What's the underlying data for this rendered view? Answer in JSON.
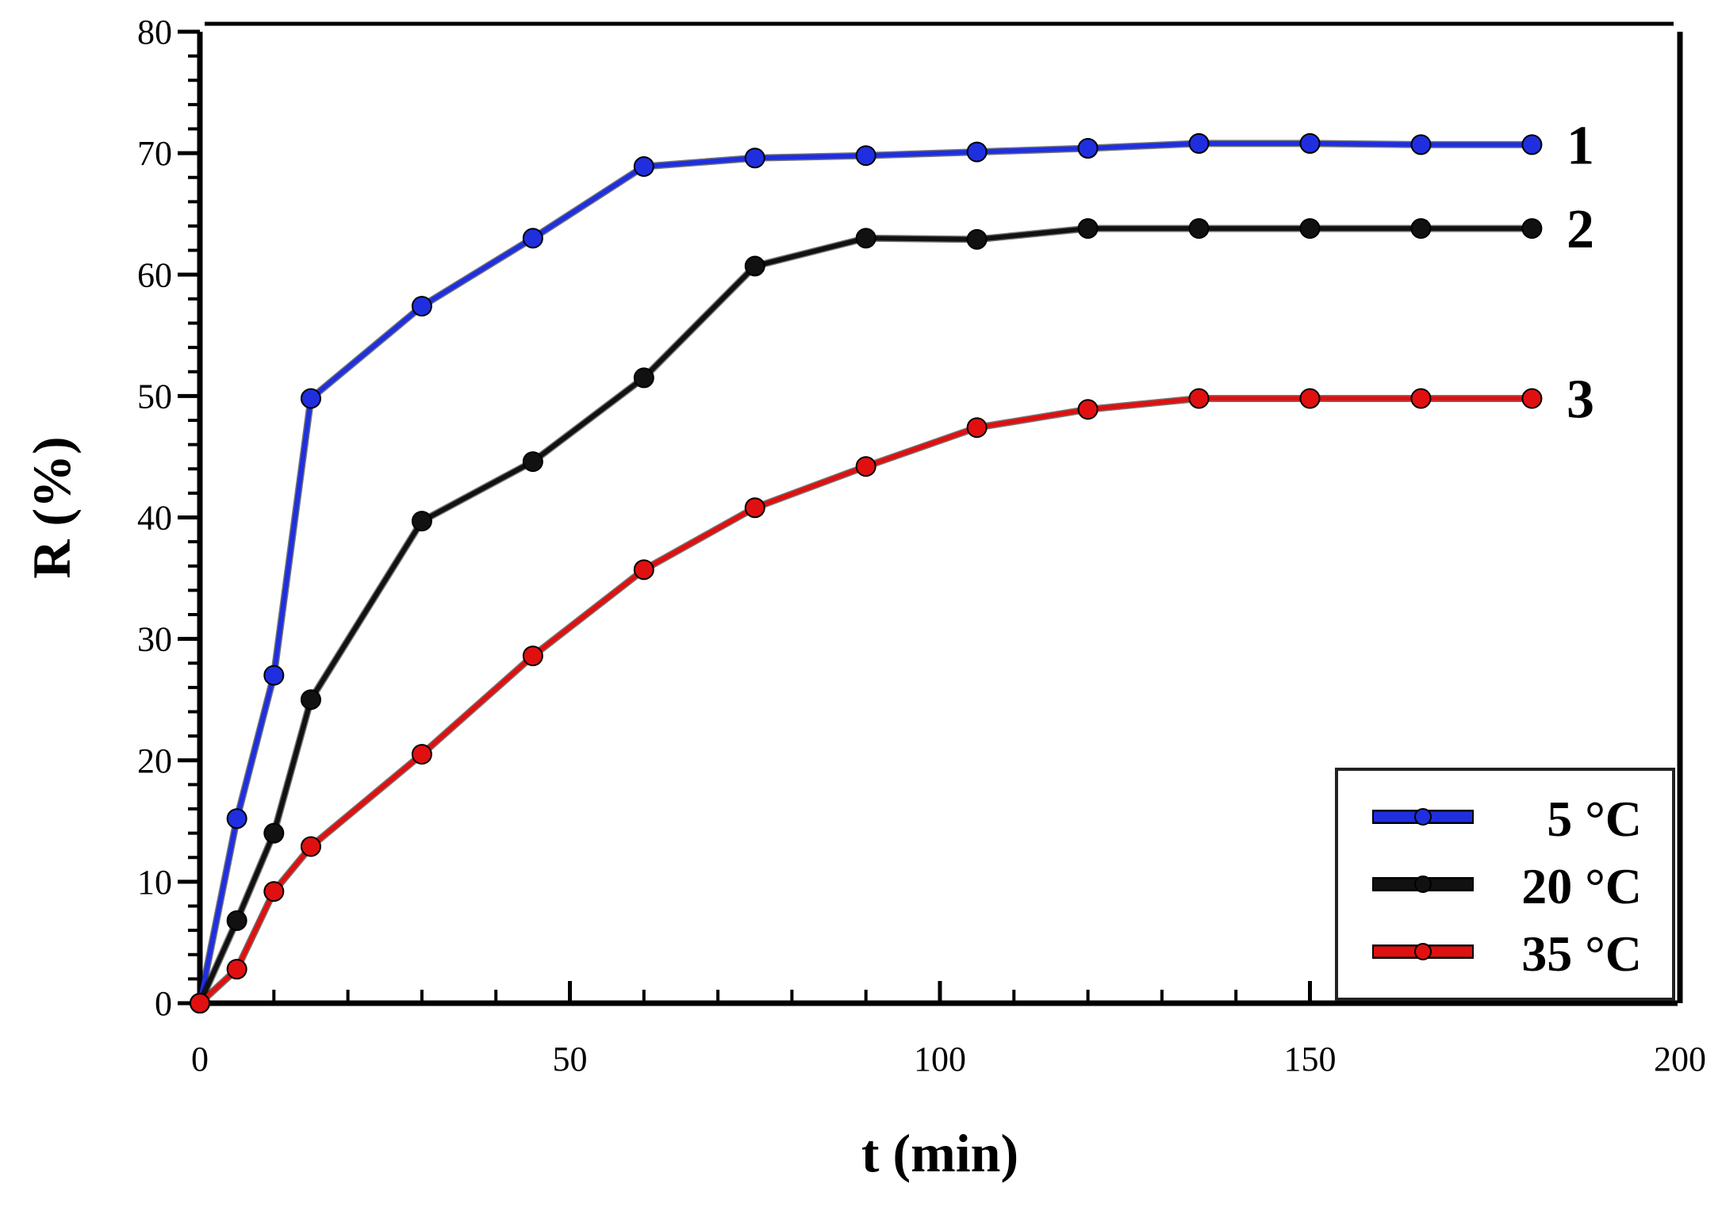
{
  "chart_data": {
    "type": "line",
    "title": "",
    "xlabel": "t (min)",
    "ylabel": "R (%)",
    "xlim": [
      0,
      200
    ],
    "ylim": [
      0,
      80
    ],
    "x_major_ticks": [
      "0",
      "50",
      "100",
      "150",
      "200"
    ],
    "y_major_ticks": [
      "0",
      "10",
      "20",
      "30",
      "40",
      "50",
      "60",
      "70",
      "80"
    ],
    "x_minor_step": 10,
    "y_minor_step": 2,
    "grid": false,
    "legend_position": "bottom-right",
    "x": [
      0,
      5,
      10,
      15,
      30,
      45,
      60,
      75,
      90,
      105,
      120,
      135,
      150,
      165,
      180
    ],
    "series": [
      {
        "name": "5 °C",
        "curve_label": "1",
        "color": "#1f2fe0",
        "values": [
          0,
          15.2,
          27.0,
          49.8,
          57.4,
          63.0,
          68.9,
          69.6,
          69.8,
          70.1,
          70.4,
          70.8,
          70.8,
          70.7,
          70.7
        ]
      },
      {
        "name": "20 °C",
        "curve_label": "2",
        "color": "#111111",
        "values": [
          0,
          6.8,
          14.0,
          25.0,
          39.7,
          44.6,
          51.5,
          60.7,
          63.0,
          62.9,
          63.8,
          63.8,
          63.8,
          63.8,
          63.8
        ]
      },
      {
        "name": "35 °C",
        "curve_label": "3",
        "color": "#e01010",
        "values": [
          0,
          2.8,
          9.2,
          12.9,
          20.5,
          28.6,
          35.7,
          40.8,
          44.2,
          47.4,
          48.9,
          49.8,
          49.8,
          49.8,
          49.8
        ]
      }
    ]
  }
}
